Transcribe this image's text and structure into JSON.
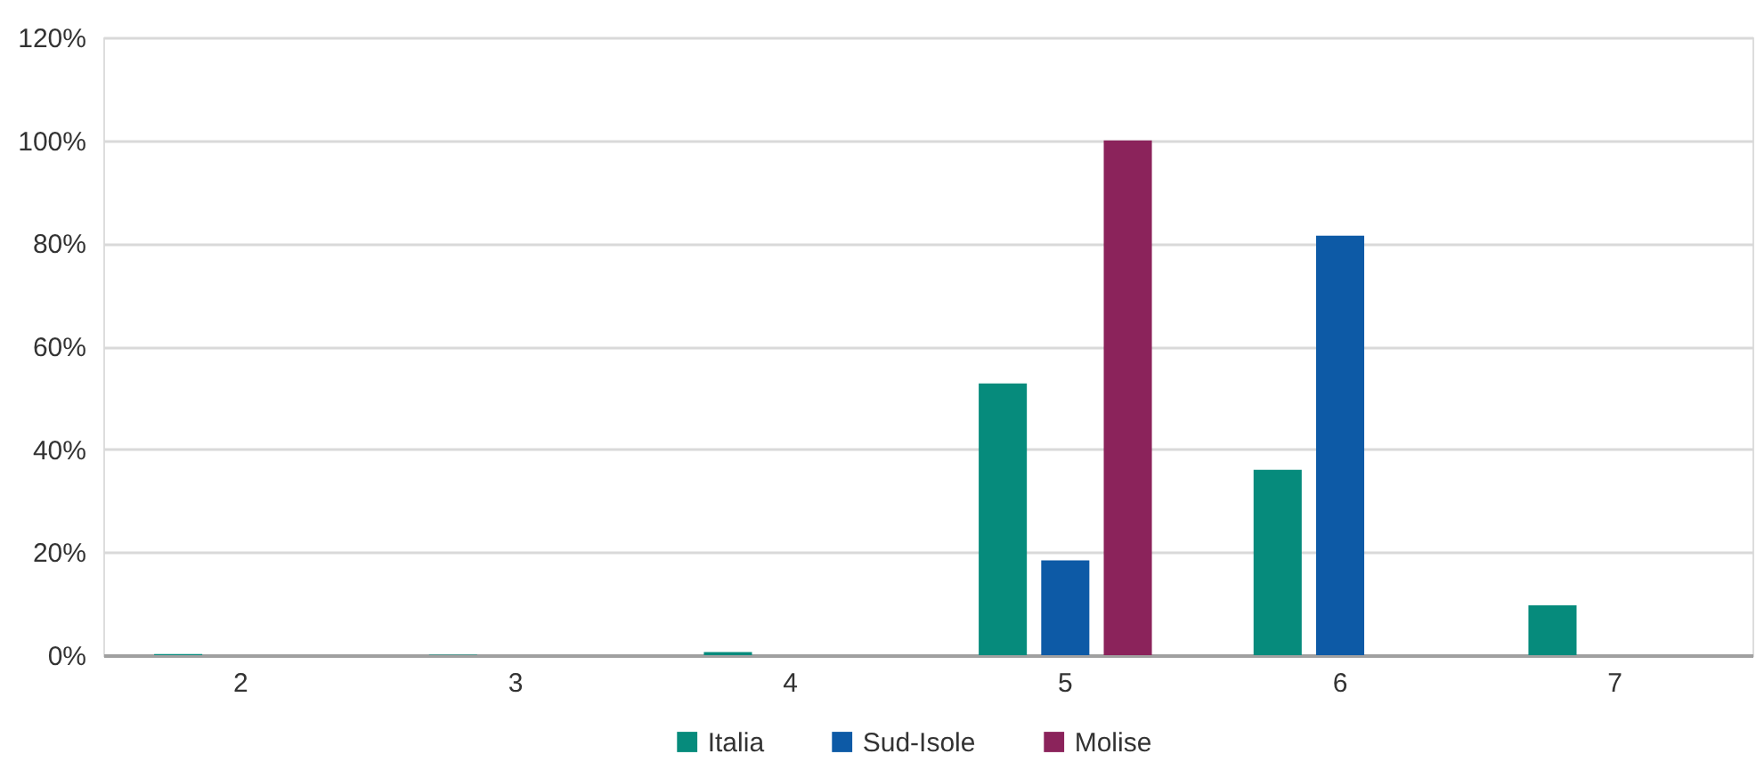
{
  "chart_data": {
    "type": "bar",
    "categories": [
      "2",
      "3",
      "4",
      "5",
      "6",
      "7"
    ],
    "series": [
      {
        "name": "Italia",
        "color": "#068b7c",
        "values": [
          0.2,
          0.1,
          0.6,
          52.8,
          36.0,
          9.7
        ]
      },
      {
        "name": "Sud-Isole",
        "color": "#0d5aa6",
        "values": [
          null,
          null,
          null,
          18.4,
          81.5,
          null
        ]
      },
      {
        "name": "Molise",
        "color": "#8b235b",
        "values": [
          null,
          null,
          null,
          100,
          null,
          null
        ]
      }
    ],
    "ylim": [
      0,
      120
    ],
    "yticks": [
      {
        "value": 0,
        "label": "0%"
      },
      {
        "value": 20,
        "label": "20%"
      },
      {
        "value": 40,
        "label": "40%"
      },
      {
        "value": 60,
        "label": "60%"
      },
      {
        "value": 80,
        "label": "80%"
      },
      {
        "value": 100,
        "label": "100%"
      },
      {
        "value": 120,
        "label": "120%"
      }
    ],
    "grid": "y",
    "legend": "bottom"
  }
}
